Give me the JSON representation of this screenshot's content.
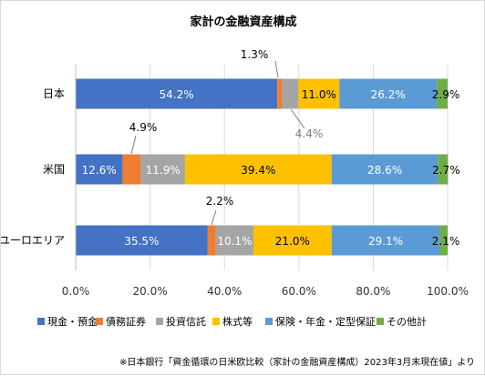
{
  "chart_data": {
    "type": "bar",
    "orientation": "horizontal",
    "stacked": "percent",
    "title": "家計の金融資産構成",
    "categories": [
      "日本",
      "米国",
      "ユーロエリア"
    ],
    "series": [
      {
        "name": "現金・預金",
        "color": "#4472c4",
        "values": [
          54.2,
          12.6,
          35.5
        ],
        "labels": [
          "54.2%",
          "12.6%",
          "35.5%"
        ]
      },
      {
        "name": "債務証券",
        "color": "#ed7d31",
        "values": [
          1.3,
          4.9,
          2.2
        ],
        "labels": [
          "1.3%",
          "4.9%",
          "2.2%"
        ]
      },
      {
        "name": "投資信託",
        "color": "#a5a5a5",
        "values": [
          4.4,
          11.9,
          10.1
        ],
        "labels": [
          "4.4%",
          "11.9%",
          "10.1%"
        ]
      },
      {
        "name": "株式等",
        "color": "#ffc000",
        "values": [
          11.0,
          39.4,
          21.0
        ],
        "labels": [
          "11.0%",
          "39.4%",
          "21.0%"
        ]
      },
      {
        "name": "保険・年金・定型保証",
        "color": "#5b9bd5",
        "values": [
          26.2,
          28.6,
          29.1
        ],
        "labels": [
          "26.2%",
          "28.6%",
          "29.1%"
        ]
      },
      {
        "name": "その他計",
        "color": "#70ad47",
        "values": [
          2.9,
          2.7,
          2.1
        ],
        "labels": [
          "2.9%",
          "2.7%",
          "2.1%"
        ]
      }
    ],
    "xlim": [
      0,
      100
    ],
    "xticks": [
      0,
      20,
      40,
      60,
      80,
      100
    ],
    "xtick_labels": [
      "0.0%",
      "20.0%",
      "40.0%",
      "60.0%",
      "80.0%",
      "100.0%"
    ],
    "grid": true,
    "legend_position": "bottom"
  },
  "source_note": "※日本銀行「資金循環の日米欧比較（家計の金融資産構成）2023年3月末現在値」より"
}
